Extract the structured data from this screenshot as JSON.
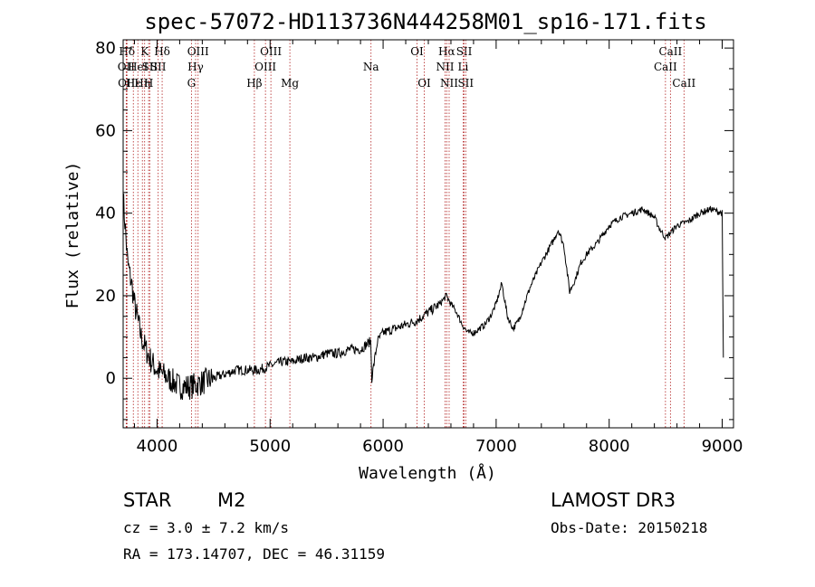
{
  "chart_data": {
    "type": "line",
    "title": "spec-57072-HD113736N444258M01_sp16-171.fits",
    "xlabel": "Wavelength (Å)",
    "ylabel": "Flux (relative)",
    "xlim": [
      3700,
      9100
    ],
    "ylim": [
      -12,
      82
    ],
    "xticks": [
      4000,
      5000,
      6000,
      7000,
      8000,
      9000
    ],
    "yticks": [
      0,
      20,
      40,
      60,
      80
    ],
    "series": [
      {
        "name": "flux",
        "x": [
          3700,
          3720,
          3740,
          3760,
          3780,
          3800,
          3830,
          3860,
          3900,
          3950,
          4000,
          4050,
          4100,
          4150,
          4200,
          4300,
          4400,
          4500,
          4600,
          4700,
          4800,
          4900,
          5000,
          5100,
          5200,
          5300,
          5400,
          5500,
          5600,
          5700,
          5800,
          5890,
          5900,
          5950,
          6000,
          6100,
          6200,
          6300,
          6400,
          6500,
          6560,
          6600,
          6650,
          6700,
          6750,
          6800,
          6850,
          6900,
          6950,
          7000,
          7050,
          7100,
          7150,
          7200,
          7250,
          7300,
          7400,
          7500,
          7550,
          7600,
          7650,
          7700,
          7750,
          7800,
          7900,
          8000,
          8100,
          8200,
          8300,
          8400,
          8450,
          8500,
          8600,
          8700,
          8800,
          8900,
          9000,
          9010
        ],
        "values": [
          44,
          36,
          28,
          25,
          22,
          18,
          14,
          10,
          7,
          4,
          2,
          1,
          0,
          -1,
          -2,
          -2,
          -1,
          0,
          1,
          2,
          2,
          2,
          3,
          4,
          4,
          5,
          5,
          6,
          6,
          7,
          7,
          9,
          0,
          9,
          11,
          12,
          13,
          14,
          16,
          18,
          20,
          18,
          16,
          13,
          11,
          11,
          12,
          13,
          15,
          18,
          23,
          15,
          12,
          14,
          18,
          22,
          28,
          33,
          36,
          32,
          21,
          24,
          28,
          30,
          33,
          37,
          39,
          40,
          41,
          39,
          36,
          34,
          37,
          38,
          40,
          41,
          40,
          5
        ]
      }
    ],
    "spectral_lines": [
      {
        "label": "Hδ",
        "x": 3734,
        "row": 1
      },
      {
        "label": "OII",
        "x": 3727,
        "row": 2
      },
      {
        "label": "OII",
        "x": 3730,
        "row": 3
      },
      {
        "label": "Hε",
        "x": 3790,
        "row": 3
      },
      {
        "label": "HeI",
        "x": 3830,
        "row": 2
      },
      {
        "label": "K",
        "x": 3890,
        "row": 1
      },
      {
        "label": "Hη",
        "x": 3870,
        "row": 3
      },
      {
        "label": "SII",
        "x": 3935,
        "row": 2
      },
      {
        "label": "H",
        "x": 3925,
        "row": 3
      },
      {
        "label": "Hδ",
        "x": 4045,
        "row": 1
      },
      {
        "label": "SII",
        "x": 4010,
        "row": 2
      },
      {
        "label": "OIII",
        "x": 4363,
        "row": 1
      },
      {
        "label": "Hγ",
        "x": 4341,
        "row": 2
      },
      {
        "label": "G",
        "x": 4304,
        "row": 3
      },
      {
        "label": "OIII",
        "x": 5007,
        "row": 1
      },
      {
        "label": "OIII",
        "x": 4959,
        "row": 2
      },
      {
        "label": "Hβ",
        "x": 4861,
        "row": 3
      },
      {
        "label": "Mg",
        "x": 5175,
        "row": 3
      },
      {
        "label": "Na",
        "x": 5893,
        "row": 2
      },
      {
        "label": "OI",
        "x": 6300,
        "row": 1
      },
      {
        "label": "OI",
        "x": 6364,
        "row": 3
      },
      {
        "label": "Hα",
        "x": 6563,
        "row": 1
      },
      {
        "label": "NII",
        "x": 6548,
        "row": 2
      },
      {
        "label": "NII",
        "x": 6584,
        "row": 3
      },
      {
        "label": "SII",
        "x": 6717,
        "row": 1
      },
      {
        "label": "Li",
        "x": 6708,
        "row": 2
      },
      {
        "label": "SII",
        "x": 6731,
        "row": 3
      },
      {
        "label": "CaII",
        "x": 8542,
        "row": 1
      },
      {
        "label": "CaII",
        "x": 8498,
        "row": 2
      },
      {
        "label": "CaII",
        "x": 8662,
        "row": 3
      }
    ]
  },
  "info": {
    "class_label": "STAR",
    "subclass": "M2",
    "cz": "cz = 3.0 ± 7.2 km/s",
    "radec": "RA = 173.14707, DEC =  46.31159",
    "survey": "LAMOST DR3",
    "obs_date": "Obs-Date: 20150218"
  }
}
